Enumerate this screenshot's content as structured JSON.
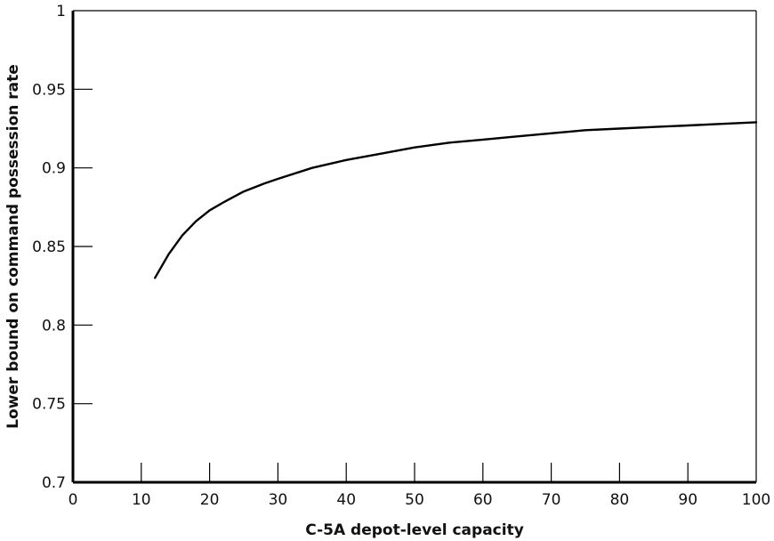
{
  "chart_data": {
    "type": "line",
    "title": "",
    "xlabel": "C-5A depot-level capacity",
    "ylabel": "Lower bound on command possession rate",
    "xlim": [
      0,
      100
    ],
    "ylim": [
      0.7,
      1
    ],
    "x_ticks": [
      0,
      10,
      20,
      30,
      40,
      50,
      60,
      70,
      80,
      90,
      100
    ],
    "x_tick_labels": [
      "0",
      "10",
      "20",
      "30",
      "40",
      "50",
      "60",
      "70",
      "80",
      "90",
      "100"
    ],
    "y_ticks": [
      0.7,
      0.75,
      0.8,
      0.85,
      0.9,
      0.95,
      1
    ],
    "y_tick_labels": [
      "0.7",
      "0.75",
      "0.8",
      "0.85",
      "0.9",
      "0.95",
      "1"
    ],
    "grid": false,
    "legend": "none",
    "line_color": "#000000",
    "series": [
      {
        "x": [
          12,
          14,
          16,
          18,
          20,
          22,
          25,
          28,
          30,
          35,
          40,
          45,
          50,
          55,
          60,
          65,
          70,
          75,
          80,
          85,
          90,
          95,
          100
        ],
        "y": [
          0.83,
          0.845,
          0.857,
          0.866,
          0.873,
          0.878,
          0.885,
          0.89,
          0.893,
          0.9,
          0.905,
          0.909,
          0.913,
          0.916,
          0.918,
          0.92,
          0.922,
          0.924,
          0.925,
          0.926,
          0.927,
          0.928,
          0.929
        ]
      }
    ]
  }
}
